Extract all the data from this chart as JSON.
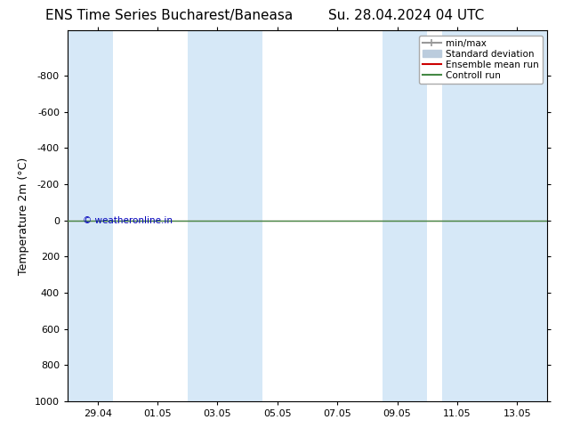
{
  "title_left": "ENS Time Series Bucharest/Baneasa",
  "title_right": "Su. 28.04.2024 04 UTC",
  "ylabel": "Temperature 2m (°C)",
  "ylim_bottom": 1000,
  "ylim_top": -1050,
  "yticks": [
    -800,
    -600,
    -400,
    -200,
    0,
    200,
    400,
    600,
    800,
    1000
  ],
  "xtick_labels": [
    "29.04",
    "01.05",
    "03.05",
    "05.05",
    "07.05",
    "09.05",
    "11.05",
    "13.05"
  ],
  "xmin": 0,
  "xmax": 16,
  "bg_color": "#ffffff",
  "plot_bg_color": "#ffffff",
  "blue_stripe_color": "#d6e8f7",
  "blue_stripes": [
    [
      0,
      1.5
    ],
    [
      4.0,
      6.5
    ],
    [
      10.5,
      12.0
    ],
    [
      12.5,
      16
    ]
  ],
  "green_line_y": 0,
  "green_line_color": "#448844",
  "red_line_color": "#cc0000",
  "copyright_text": "© weatheronline.in",
  "copyright_color": "#0000bb",
  "legend_items": [
    {
      "label": "min/max",
      "color": "#999999",
      "lw": 1.5
    },
    {
      "label": "Standard deviation",
      "color": "#bbccdd",
      "lw": 8
    },
    {
      "label": "Ensemble mean run",
      "color": "#cc0000",
      "lw": 1.5
    },
    {
      "label": "Controll run",
      "color": "#448844",
      "lw": 1.5
    }
  ],
  "title_fontsize": 11,
  "tick_fontsize": 8,
  "ylabel_fontsize": 9,
  "legend_fontsize": 7.5
}
